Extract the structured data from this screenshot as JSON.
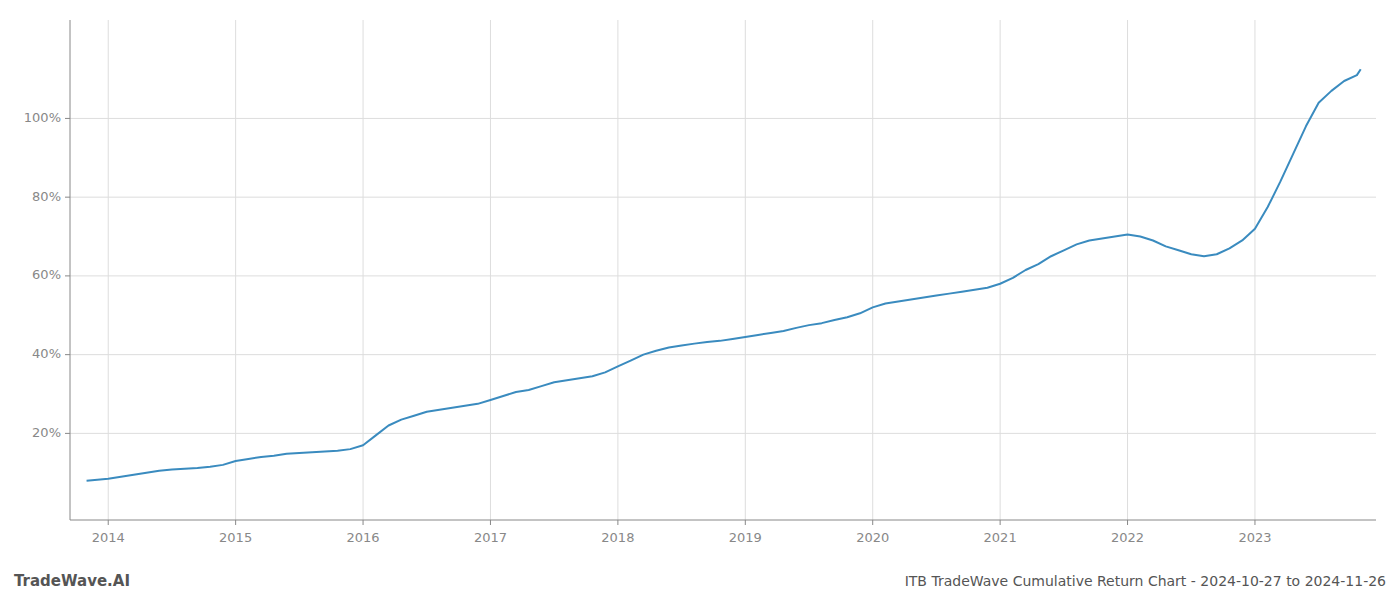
{
  "chart_data": {
    "type": "line",
    "title": "ITB TradeWave Cumulative Return Chart - 2024-10-27 to 2024-11-26",
    "annotations": [
      "TradeWave.AI"
    ],
    "color": "#3a8bbf",
    "grid": true,
    "x": [
      2013.83,
      2014.0,
      2014.1,
      2014.2,
      2014.3,
      2014.4,
      2014.5,
      2014.6,
      2014.7,
      2014.8,
      2014.9,
      2015.0,
      2015.1,
      2015.2,
      2015.3,
      2015.4,
      2015.5,
      2015.6,
      2015.7,
      2015.8,
      2015.9,
      2016.0,
      2016.1,
      2016.2,
      2016.3,
      2016.4,
      2016.5,
      2016.6,
      2016.7,
      2016.8,
      2016.9,
      2017.0,
      2017.1,
      2017.2,
      2017.3,
      2017.4,
      2017.5,
      2017.6,
      2017.7,
      2017.8,
      2017.9,
      2018.0,
      2018.1,
      2018.2,
      2018.3,
      2018.4,
      2018.5,
      2018.6,
      2018.7,
      2018.8,
      2018.9,
      2019.0,
      2019.1,
      2019.2,
      2019.3,
      2019.4,
      2019.5,
      2019.6,
      2019.7,
      2019.8,
      2019.9,
      2020.0,
      2020.1,
      2020.2,
      2020.3,
      2020.4,
      2020.5,
      2020.6,
      2020.7,
      2020.8,
      2020.9,
      2021.0,
      2021.1,
      2021.2,
      2021.3,
      2021.4,
      2021.5,
      2021.6,
      2021.7,
      2021.8,
      2021.9,
      2022.0,
      2022.1,
      2022.2,
      2022.3,
      2022.4,
      2022.5,
      2022.6,
      2022.7,
      2022.8,
      2022.9,
      2023.0,
      2023.1,
      2023.2,
      2023.3,
      2023.4,
      2023.5,
      2023.6,
      2023.7,
      2023.8,
      2023.83
    ],
    "values": [
      8.0,
      8.5,
      9.0,
      9.5,
      10.0,
      10.5,
      10.8,
      11.0,
      11.2,
      11.5,
      12.0,
      13.0,
      13.5,
      14.0,
      14.3,
      14.8,
      15.0,
      15.2,
      15.4,
      15.6,
      16.0,
      17.0,
      19.5,
      22.0,
      23.5,
      24.5,
      25.5,
      26.0,
      26.5,
      27.0,
      27.5,
      28.5,
      29.5,
      30.5,
      31.0,
      32.0,
      33.0,
      33.5,
      34.0,
      34.5,
      35.5,
      37.0,
      38.5,
      40.0,
      41.0,
      41.8,
      42.3,
      42.8,
      43.2,
      43.5,
      44.0,
      44.5,
      45.0,
      45.5,
      46.0,
      46.8,
      47.5,
      48.0,
      48.8,
      49.5,
      50.5,
      52.0,
      53.0,
      53.5,
      54.0,
      54.5,
      55.0,
      55.5,
      56.0,
      56.5,
      57.0,
      58.0,
      59.5,
      61.5,
      63.0,
      65.0,
      66.5,
      68.0,
      69.0,
      69.5,
      70.0,
      70.5,
      70.0,
      69.0,
      67.5,
      66.5,
      65.5,
      65.0,
      65.5,
      67.0,
      69.0,
      72.0,
      77.5,
      84.0,
      91.0,
      98.0,
      104.0,
      107.0,
      109.5,
      111.0,
      112.5
    ],
    "xlim": [
      2013.7,
      2023.95
    ],
    "xticks": [
      2014,
      2015,
      2016,
      2017,
      2018,
      2019,
      2020,
      2021,
      2022,
      2023
    ],
    "ylim": [
      -2,
      125
    ],
    "yticks": [
      {
        "value": 20,
        "label": "20%"
      },
      {
        "value": 40,
        "label": "40%"
      },
      {
        "value": 60,
        "label": "60%"
      },
      {
        "value": 80,
        "label": "80%"
      },
      {
        "value": 100,
        "label": "100%"
      }
    ]
  }
}
